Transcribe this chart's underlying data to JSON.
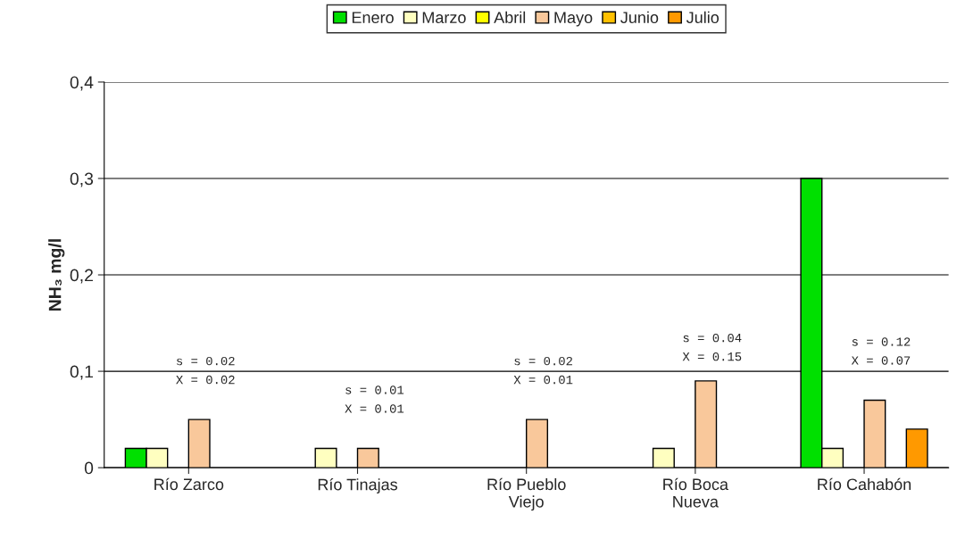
{
  "chart_data": {
    "type": "bar",
    "ylabel": "NH₃ mg/l",
    "categories": [
      "Río Zarco",
      "Río Tinajas",
      "Río Pueblo\nViejo",
      "Río Boca\nNueva",
      "Río Cahabón"
    ],
    "series": [
      {
        "name": "Enero",
        "color": "#00e000",
        "values": [
          0.02,
          null,
          null,
          null,
          0.3
        ]
      },
      {
        "name": "Marzo",
        "color": "#ffffc0",
        "values": [
          0.02,
          0.02,
          null,
          0.02,
          0.02
        ]
      },
      {
        "name": "Abril",
        "color": "#ffff00",
        "values": [
          null,
          null,
          null,
          null,
          null
        ]
      },
      {
        "name": "Mayo",
        "color": "#f9c89b",
        "values": [
          0.05,
          0.02,
          0.05,
          0.09,
          0.07
        ]
      },
      {
        "name": "Junio",
        "color": "#ffc000",
        "values": [
          null,
          null,
          null,
          null,
          null
        ]
      },
      {
        "name": "Julio",
        "color": "#ff9900",
        "values": [
          null,
          null,
          null,
          null,
          0.04
        ]
      }
    ],
    "ylim": [
      0,
      0.4
    ],
    "yticks": [
      0,
      {
        "value": 0.1,
        "label": "0,1"
      },
      {
        "value": 0.2,
        "label": "0,2"
      },
      {
        "value": 0.3,
        "label": "0,3"
      },
      {
        "value": 0.4,
        "label": "0,4"
      }
    ],
    "grid": "y",
    "legend": "top",
    "annotations": [
      "s = 0.02\nX = 0.02",
      "s = 0.01\nX = 0.01",
      "s = 0.02\nX = 0.01",
      "s = 0.04\nX = 0.15",
      "s = 0.12\nX = 0.07"
    ]
  }
}
